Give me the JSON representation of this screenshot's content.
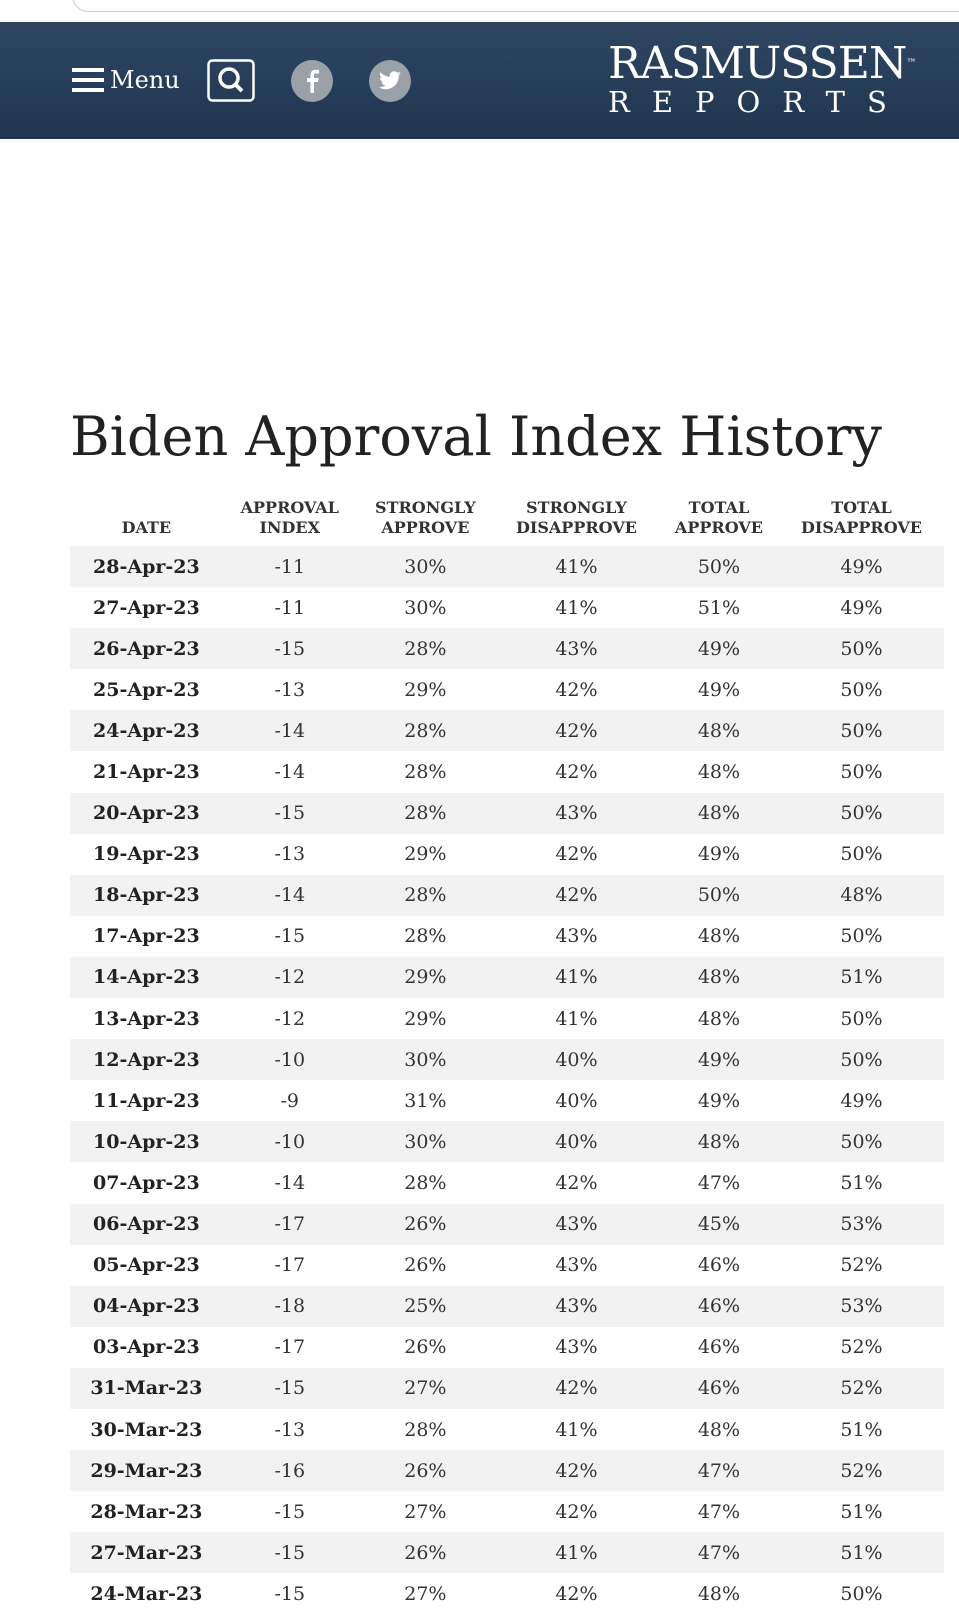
{
  "nav": {
    "menu": "Menu",
    "brand_top": "RASMUSSEN",
    "trademark": "™",
    "brand_bottom": "REPORTS"
  },
  "title": "Biden Approval Index History",
  "table": {
    "header": [
      "DATE",
      "APPROVAL INDEX",
      "STRONGLY APPROVE",
      "STRONGLY DISAPPROVE",
      "TOTAL APPROVE",
      "TOTAL DISAPPROVE"
    ],
    "rows": [
      [
        "28-Apr-23",
        "-11",
        "30%",
        "41%",
        "50%",
        "49%"
      ],
      [
        "27-Apr-23",
        "-11",
        "30%",
        "41%",
        "51%",
        "49%"
      ],
      [
        "26-Apr-23",
        "-15",
        "28%",
        "43%",
        "49%",
        "50%"
      ],
      [
        "25-Apr-23",
        "-13",
        "29%",
        "42%",
        "49%",
        "50%"
      ],
      [
        "24-Apr-23",
        "-14",
        "28%",
        "42%",
        "48%",
        "50%"
      ],
      [
        "21-Apr-23",
        "-14",
        "28%",
        "42%",
        "48%",
        "50%"
      ],
      [
        "20-Apr-23",
        "-15",
        "28%",
        "43%",
        "48%",
        "50%"
      ],
      [
        "19-Apr-23",
        "-13",
        "29%",
        "42%",
        "49%",
        "50%"
      ],
      [
        "18-Apr-23",
        "-14",
        "28%",
        "42%",
        "50%",
        "48%"
      ],
      [
        "17-Apr-23",
        "-15",
        "28%",
        "43%",
        "48%",
        "50%"
      ],
      [
        "14-Apr-23",
        "-12",
        "29%",
        "41%",
        "48%",
        "51%"
      ],
      [
        "13-Apr-23",
        "-12",
        "29%",
        "41%",
        "48%",
        "50%"
      ],
      [
        "12-Apr-23",
        "-10",
        "30%",
        "40%",
        "49%",
        "50%"
      ],
      [
        "11-Apr-23",
        "-9",
        "31%",
        "40%",
        "49%",
        "49%"
      ],
      [
        "10-Apr-23",
        "-10",
        "30%",
        "40%",
        "48%",
        "50%"
      ],
      [
        "07-Apr-23",
        "-14",
        "28%",
        "42%",
        "47%",
        "51%"
      ],
      [
        "06-Apr-23",
        "-17",
        "26%",
        "43%",
        "45%",
        "53%"
      ],
      [
        "05-Apr-23",
        "-17",
        "26%",
        "43%",
        "46%",
        "52%"
      ],
      [
        "04-Apr-23",
        "-18",
        "25%",
        "43%",
        "46%",
        "53%"
      ],
      [
        "03-Apr-23",
        "-17",
        "26%",
        "43%",
        "46%",
        "52%"
      ],
      [
        "31-Mar-23",
        "-15",
        "27%",
        "42%",
        "46%",
        "52%"
      ],
      [
        "30-Mar-23",
        "-13",
        "28%",
        "41%",
        "48%",
        "51%"
      ],
      [
        "29-Mar-23",
        "-16",
        "26%",
        "42%",
        "47%",
        "52%"
      ],
      [
        "28-Mar-23",
        "-15",
        "27%",
        "42%",
        "47%",
        "51%"
      ],
      [
        "27-Mar-23",
        "-15",
        "26%",
        "41%",
        "47%",
        "51%"
      ],
      [
        "24-Mar-23",
        "-15",
        "27%",
        "42%",
        "48%",
        "50%"
      ]
    ]
  }
}
